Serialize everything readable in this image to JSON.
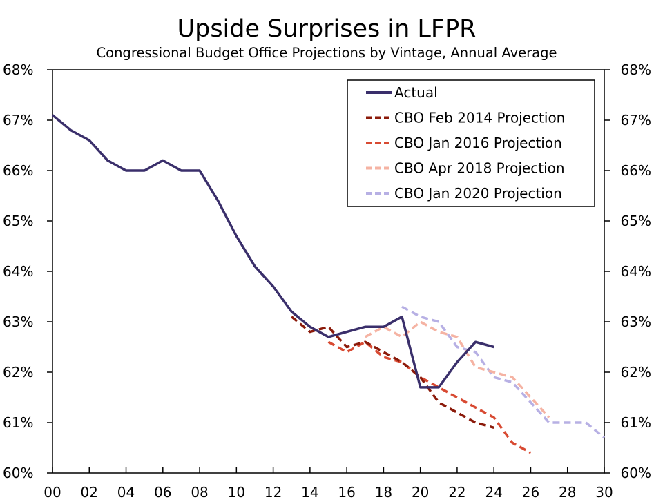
{
  "chart_data": {
    "type": "line",
    "title": "Upside Surprises in LFPR",
    "subtitle": "Congressional Budget Office Projections by Vintage, Annual Average",
    "xlabel": "",
    "ylabel": "",
    "xlim": [
      2000,
      2030
    ],
    "ylim": [
      60,
      68
    ],
    "x_ticks": [
      "00",
      "02",
      "04",
      "06",
      "08",
      "10",
      "12",
      "14",
      "16",
      "18",
      "20",
      "22",
      "24",
      "26",
      "28",
      "30"
    ],
    "y_ticks": [
      "60%",
      "61%",
      "62%",
      "63%",
      "64%",
      "65%",
      "66%",
      "67%",
      "68%"
    ],
    "legend_position": "top-right",
    "grid": false,
    "series": [
      {
        "name": "Actual",
        "color": "#3a2f6b",
        "dash": "solid",
        "x": [
          2000,
          2001,
          2002,
          2003,
          2004,
          2005,
          2006,
          2007,
          2008,
          2009,
          2010,
          2011,
          2012,
          2013,
          2014,
          2015,
          2016,
          2017,
          2018,
          2019,
          2020,
          2021,
          2022,
          2023,
          2024
        ],
        "y": [
          67.1,
          66.8,
          66.6,
          66.2,
          66.0,
          66.0,
          66.2,
          66.0,
          66.0,
          65.4,
          64.7,
          64.1,
          63.7,
          63.2,
          62.9,
          62.7,
          62.8,
          62.9,
          62.9,
          63.1,
          61.7,
          61.7,
          62.2,
          62.6,
          62.5
        ]
      },
      {
        "name": "CBO Feb 2014 Projection",
        "color": "#8b1a0a",
        "dash": "dashed",
        "x": [
          2013,
          2014,
          2015,
          2016,
          2017,
          2018,
          2019,
          2020,
          2021,
          2022,
          2023,
          2024
        ],
        "y": [
          63.1,
          62.8,
          62.9,
          62.5,
          62.6,
          62.4,
          62.2,
          61.9,
          61.4,
          61.2,
          61.0,
          60.9
        ]
      },
      {
        "name": "CBO Jan 2016 Projection",
        "color": "#d84a32",
        "dash": "dashed",
        "x": [
          2015,
          2016,
          2017,
          2018,
          2019,
          2020,
          2021,
          2022,
          2023,
          2024,
          2025,
          2026
        ],
        "y": [
          62.6,
          62.4,
          62.6,
          62.3,
          62.2,
          61.9,
          61.7,
          61.5,
          61.3,
          61.1,
          60.6,
          60.4
        ]
      },
      {
        "name": "CBO Apr 2018 Projection",
        "color": "#f5b3a3",
        "dash": "dashed",
        "x": [
          2017,
          2018,
          2019,
          2020,
          2021,
          2022,
          2023,
          2024,
          2025,
          2026,
          2027
        ],
        "y": [
          62.7,
          62.9,
          62.7,
          63.0,
          62.8,
          62.7,
          62.1,
          62.0,
          61.9,
          61.5,
          61.1
        ]
      },
      {
        "name": "CBO Jan 2020 Projection",
        "color": "#b7b0e4",
        "dash": "dashed",
        "x": [
          2019,
          2020,
          2021,
          2022,
          2023,
          2024,
          2025,
          2026,
          2027,
          2028,
          2029,
          2030
        ],
        "y": [
          63.3,
          63.1,
          63.0,
          62.5,
          62.4,
          61.9,
          61.8,
          61.4,
          61.0,
          61.0,
          61.0,
          60.7
        ]
      }
    ]
  }
}
